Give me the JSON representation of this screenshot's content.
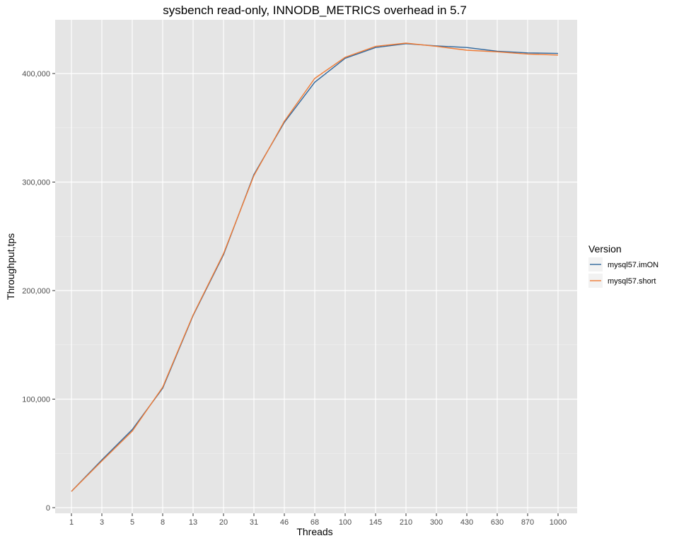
{
  "chart_data": {
    "type": "line",
    "title": "sysbench read-only, INNODB_METRICS overhead in 5.7",
    "xlabel": "Threads",
    "ylabel": "Throughput,tps",
    "categories": [
      "1",
      "3",
      "5",
      "8",
      "13",
      "20",
      "31",
      "46",
      "68",
      "100",
      "145",
      "210",
      "300",
      "430",
      "630",
      "870",
      "1000"
    ],
    "ylim": [
      0,
      440000
    ],
    "yticks": [
      0,
      100000,
      200000,
      300000,
      400000
    ],
    "ytick_labels": [
      "0",
      "100,000",
      "200,000",
      "300,000",
      "400,000"
    ],
    "grid": true,
    "legend": {
      "title": "Version",
      "position": "right"
    },
    "series": [
      {
        "name": "mysql57.imON",
        "color": "#31689d",
        "values": [
          15000,
          44000,
          72000,
          110000,
          177000,
          233000,
          307000,
          355000,
          392000,
          414000,
          424000,
          427500,
          425500,
          424000,
          420500,
          419000,
          418500
        ]
      },
      {
        "name": "mysql57.short",
        "color": "#f07b35",
        "values": [
          15000,
          43000,
          70500,
          111000,
          177500,
          234000,
          306000,
          356000,
          395500,
          415000,
          425000,
          428000,
          425000,
          421500,
          420000,
          418000,
          417000
        ]
      }
    ]
  }
}
